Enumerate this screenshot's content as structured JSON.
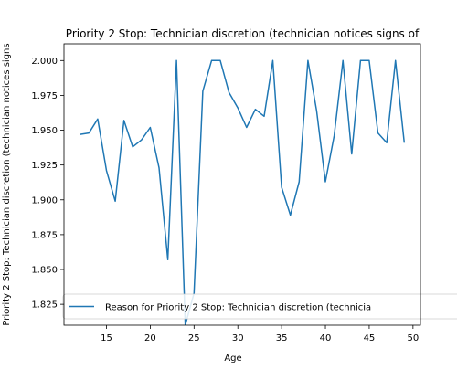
{
  "chart_data": {
    "type": "line",
    "title": "Priority 2 Stop: Technician discretion (technician notices signs of",
    "xlabel": "Age",
    "ylabel": "Priority 2 Stop: Technician discretion (technician notices signs",
    "xlim": [
      10.15,
      50.85
    ],
    "ylim": [
      1.81,
      2.012
    ],
    "xticks": [
      15,
      20,
      25,
      30,
      35,
      40,
      45,
      50
    ],
    "yticks": [
      1.825,
      1.85,
      1.875,
      1.9,
      1.925,
      1.95,
      1.975,
      2.0
    ],
    "ytick_labels": [
      "1.825",
      "1.850",
      "1.875",
      "1.900",
      "1.925",
      "1.950",
      "1.975",
      "2.000"
    ],
    "grid": false,
    "legend_position": "lower-left",
    "colors": {
      "line": "#1f77b4",
      "axes": "#000000"
    },
    "series": [
      {
        "name": "Reason for Priority 2 Stop: Technician discretion (technicia",
        "x": [
          12,
          13,
          14,
          15,
          16,
          17,
          18,
          19,
          20,
          21,
          22,
          23,
          24,
          25,
          26,
          27,
          28,
          29,
          30,
          31,
          32,
          33,
          34,
          35,
          36,
          37,
          38,
          39,
          40,
          41,
          42,
          43,
          44,
          45,
          46,
          47,
          48,
          49
        ],
        "y": [
          1.947,
          1.948,
          1.958,
          1.921,
          1.899,
          1.957,
          1.938,
          1.943,
          1.952,
          1.923,
          1.857,
          2.0,
          1.81,
          1.833,
          1.978,
          2.0,
          2.0,
          1.977,
          1.966,
          1.952,
          1.965,
          1.96,
          2.0,
          1.909,
          1.889,
          1.913,
          2.0,
          1.964,
          1.913,
          1.946,
          2.0,
          1.933,
          2.0,
          2.0,
          1.948,
          1.941,
          2.0,
          1.941
        ]
      }
    ]
  }
}
